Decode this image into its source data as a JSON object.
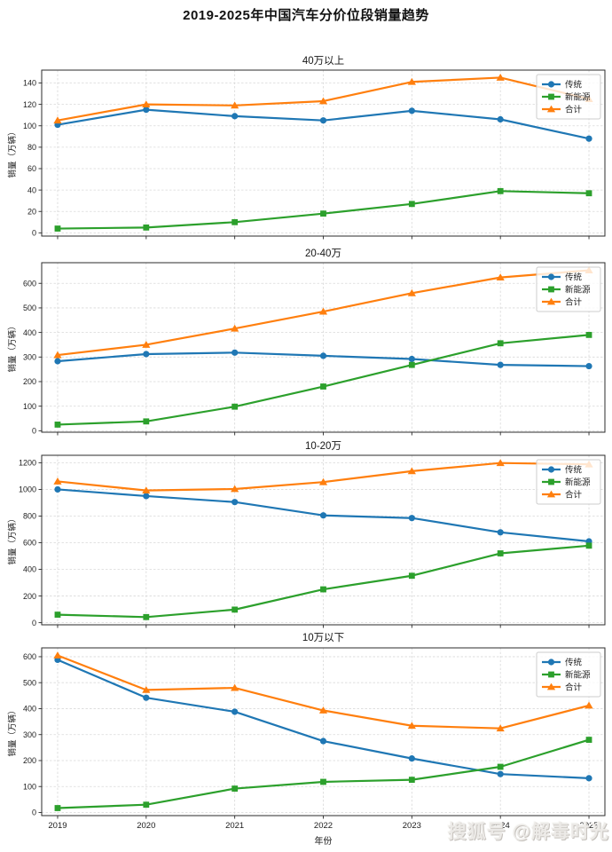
{
  "figure": {
    "title": "2019-2025年中国汽车分价位段销量趋势",
    "watermark": "搜狐号 @解毒时光"
  },
  "chart_data": [
    {
      "type": "line",
      "key": "over-400k",
      "title": "40万以上",
      "xlabel": "年份",
      "ylabel": "销量（万辆）",
      "x": [
        2019,
        2020,
        2021,
        2022,
        2023,
        2024,
        2025
      ],
      "yticks": [
        0,
        20,
        40,
        60,
        80,
        100,
        120,
        140
      ],
      "ylim": [
        -3,
        152
      ],
      "grid": true,
      "legend_position": "upper right",
      "series": [
        {
          "name": "传统",
          "key": "traditional",
          "color": "#1f77b4",
          "marker": "circle",
          "values": [
            101,
            115,
            109,
            105,
            114,
            106,
            88
          ]
        },
        {
          "name": "新能源",
          "key": "nev",
          "color": "#2ca02c",
          "marker": "square",
          "values": [
            4,
            5,
            10,
            18,
            27,
            39,
            37
          ]
        },
        {
          "name": "合计",
          "key": "total",
          "color": "#ff7f0e",
          "marker": "triangle",
          "values": [
            105,
            120,
            119,
            123,
            141,
            145,
            125
          ]
        }
      ]
    },
    {
      "type": "line",
      "key": "200k-400k",
      "title": "20-40万",
      "xlabel": "年份",
      "ylabel": "销量（万辆）",
      "x": [
        2019,
        2020,
        2021,
        2022,
        2023,
        2024,
        2025
      ],
      "yticks": [
        0,
        100,
        200,
        300,
        400,
        500,
        600
      ],
      "ylim": [
        -6,
        684
      ],
      "grid": true,
      "legend_position": "upper right",
      "series": [
        {
          "name": "传统",
          "key": "traditional",
          "color": "#1f77b4",
          "marker": "circle",
          "values": [
            283,
            312,
            318,
            305,
            292,
            268,
            263
          ]
        },
        {
          "name": "新能源",
          "key": "nev",
          "color": "#2ca02c",
          "marker": "square",
          "values": [
            25,
            38,
            98,
            180,
            268,
            356,
            390
          ]
        },
        {
          "name": "合计",
          "key": "total",
          "color": "#ff7f0e",
          "marker": "triangle",
          "values": [
            308,
            350,
            416,
            485,
            560,
            624,
            653
          ]
        }
      ]
    },
    {
      "type": "line",
      "key": "100k-200k",
      "title": "10-20万",
      "xlabel": "年份",
      "ylabel": "销量（万辆）",
      "x": [
        2019,
        2020,
        2021,
        2022,
        2023,
        2024,
        2025
      ],
      "yticks": [
        0,
        200,
        400,
        600,
        800,
        1000,
        1200
      ],
      "ylim": [
        -16,
        1256
      ],
      "grid": true,
      "legend_position": "upper right",
      "series": [
        {
          "name": "传统",
          "key": "traditional",
          "color": "#1f77b4",
          "marker": "circle",
          "values": [
            1000,
            950,
            905,
            805,
            785,
            678,
            610
          ]
        },
        {
          "name": "新能源",
          "key": "nev",
          "color": "#2ca02c",
          "marker": "square",
          "values": [
            60,
            42,
            98,
            250,
            352,
            520,
            578
          ]
        },
        {
          "name": "合计",
          "key": "total",
          "color": "#ff7f0e",
          "marker": "triangle",
          "values": [
            1060,
            992,
            1003,
            1055,
            1137,
            1198,
            1188
          ]
        }
      ]
    },
    {
      "type": "line",
      "key": "under-100k",
      "title": "10万以下",
      "xlabel": "年份",
      "ylabel": "销量（万辆）",
      "x": [
        2019,
        2020,
        2021,
        2022,
        2023,
        2024,
        2025
      ],
      "yticks": [
        0,
        100,
        200,
        300,
        400,
        500,
        600
      ],
      "ylim": [
        -12,
        634
      ],
      "grid": true,
      "legend_position": "upper right",
      "series": [
        {
          "name": "传统",
          "key": "traditional",
          "color": "#1f77b4",
          "marker": "circle",
          "values": [
            588,
            442,
            388,
            275,
            208,
            148,
            132
          ]
        },
        {
          "name": "新能源",
          "key": "nev",
          "color": "#2ca02c",
          "marker": "square",
          "values": [
            17,
            30,
            92,
            118,
            126,
            176,
            280
          ]
        },
        {
          "name": "合计",
          "key": "total",
          "color": "#ff7f0e",
          "marker": "triangle",
          "values": [
            605,
            472,
            480,
            393,
            334,
            324,
            412
          ]
        }
      ]
    }
  ]
}
